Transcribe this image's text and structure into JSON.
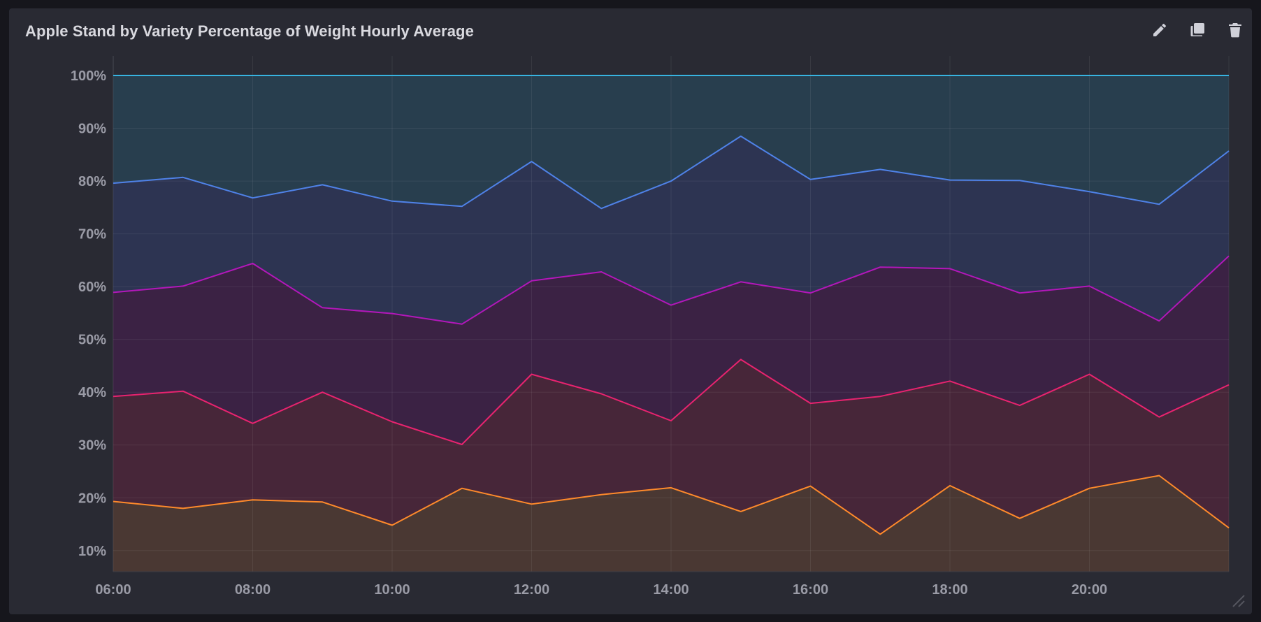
{
  "panel": {
    "title": "Apple Stand by Variety Percentage of Weight Hourly Average",
    "actions": [
      {
        "name": "edit-icon",
        "icon": "pencil"
      },
      {
        "name": "clone-icon",
        "icon": "copy"
      },
      {
        "name": "delete-icon",
        "icon": "trash"
      }
    ]
  },
  "chart_data": {
    "type": "area",
    "stacked": true,
    "x": [
      "06:00",
      "07:00",
      "08:00",
      "09:00",
      "10:00",
      "11:00",
      "12:00",
      "13:00",
      "14:00",
      "15:00",
      "16:00",
      "17:00",
      "18:00",
      "19:00",
      "20:00",
      "21:00",
      "22:00"
    ],
    "x_tick_labels": [
      "06:00",
      "08:00",
      "10:00",
      "12:00",
      "14:00",
      "16:00",
      "18:00",
      "20:00"
    ],
    "y_tick_labels": [
      "10%",
      "20%",
      "30%",
      "40%",
      "50%",
      "60%",
      "70%",
      "80%",
      "90%",
      "100%"
    ],
    "ylim": [
      6,
      100
    ],
    "grid": true,
    "series": [
      {
        "color": "#ff8a2b",
        "fill": "#4a3833",
        "values": [
          19.3,
          18.0,
          19.6,
          19.2,
          14.8,
          21.8,
          18.8,
          20.6,
          21.9,
          17.4,
          22.2,
          13.1,
          22.3,
          16.1,
          21.8,
          24.2,
          14.3
        ]
      },
      {
        "color": "#e8236f",
        "fill": "#472639",
        "values": [
          39.2,
          40.2,
          34.1,
          40.0,
          34.4,
          30.1,
          43.4,
          39.7,
          34.6,
          46.2,
          37.9,
          39.2,
          42.1,
          37.5,
          43.4,
          35.3,
          41.4
        ]
      },
      {
        "color": "#b317ba",
        "fill": "#3b2244",
        "values": [
          58.9,
          60.1,
          64.4,
          56.0,
          54.9,
          52.9,
          61.1,
          62.8,
          56.5,
          60.9,
          58.8,
          63.7,
          63.4,
          58.8,
          60.1,
          53.5,
          65.8
        ]
      },
      {
        "color": "#4f82e8",
        "fill": "#2d3452",
        "values": [
          79.6,
          80.7,
          76.8,
          79.3,
          76.2,
          75.2,
          83.7,
          74.8,
          80.0,
          88.5,
          80.3,
          82.2,
          80.2,
          80.1,
          78.0,
          75.6,
          85.7
        ]
      },
      {
        "color": "#37b3e0",
        "fill": "#283e4e",
        "values": [
          100,
          100,
          100,
          100,
          100,
          100,
          100,
          100,
          100,
          100,
          100,
          100,
          100,
          100,
          100,
          100,
          100
        ]
      }
    ]
  }
}
